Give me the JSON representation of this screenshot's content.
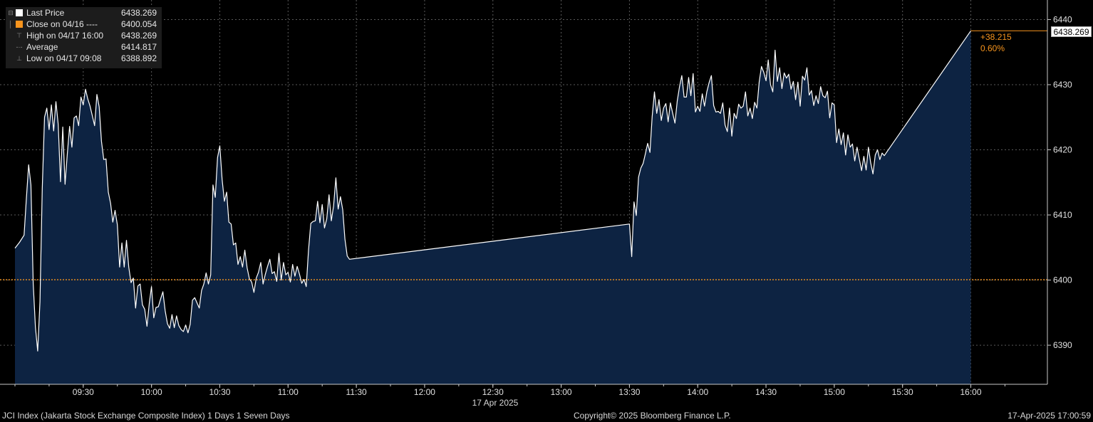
{
  "chart_data": {
    "type": "area",
    "title": "JCI Index (Jakarta Stock Exchange Composite Index) 1 Days 1 Seven Days",
    "date_label": "17 Apr 2025",
    "x_ticks": [
      "09:30",
      "10:00",
      "10:30",
      "11:00",
      "11:30",
      "12:00",
      "12:30",
      "13:00",
      "13:30",
      "14:00",
      "14:30",
      "15:00",
      "15:30",
      "16:00"
    ],
    "y_ticks": [
      "6390",
      "6400",
      "6410",
      "6420",
      "6430",
      "6440"
    ],
    "ylim": [
      6384,
      6443
    ],
    "reference_close": 6400.054,
    "last_price_label": "6438.269",
    "change": "+38.215",
    "change_pct": "0.60%",
    "series": [
      {
        "name": "Last Price",
        "color": "#ffffff",
        "fill": "#0d2342",
        "points": [
          [
            "09:00",
            6404.9
          ],
          [
            "09:02",
            6405.8
          ],
          [
            "09:04",
            6406.9
          ],
          [
            "09:05",
            6412.5
          ],
          [
            "09:06",
            6417.7
          ],
          [
            "09:07",
            6414.6
          ],
          [
            "09:08",
            6399.5
          ],
          [
            "09:09",
            6392.8
          ],
          [
            "09:10",
            6389.1
          ],
          [
            "09:11",
            6396.7
          ],
          [
            "09:12",
            6414.0
          ],
          [
            "09:13",
            6425.0
          ],
          [
            "09:14",
            6426.4
          ],
          [
            "09:15",
            6423.1
          ],
          [
            "09:16",
            6426.9
          ],
          [
            "09:17",
            6422.9
          ],
          [
            "09:18",
            6427.4
          ],
          [
            "09:19",
            6423.9
          ],
          [
            "09:20",
            6415.1
          ],
          [
            "09:21",
            6423.5
          ],
          [
            "09:22",
            6414.7
          ],
          [
            "09:23",
            6419.4
          ],
          [
            "09:24",
            6423.6
          ],
          [
            "09:25",
            6420.4
          ],
          [
            "09:26",
            6424.9
          ],
          [
            "09:27",
            6425.2
          ],
          [
            "09:28",
            6423.7
          ],
          [
            "09:29",
            6428.1
          ],
          [
            "09:30",
            6426.9
          ],
          [
            "09:31",
            6429.3
          ],
          [
            "09:32",
            6427.8
          ],
          [
            "09:33",
            6426.7
          ],
          [
            "09:34",
            6425.2
          ],
          [
            "09:35",
            6423.7
          ],
          [
            "09:36",
            6428.5
          ],
          [
            "09:37",
            6426.6
          ],
          [
            "09:38",
            6421.3
          ],
          [
            "09:39",
            6418.5
          ],
          [
            "09:40",
            6418.6
          ],
          [
            "09:41",
            6413.5
          ],
          [
            "09:42",
            6411.8
          ],
          [
            "09:43",
            6408.9
          ],
          [
            "09:44",
            6410.7
          ],
          [
            "09:45",
            6408.5
          ],
          [
            "09:46",
            6402.0
          ],
          [
            "09:47",
            6405.7
          ],
          [
            "09:48",
            6402.0
          ],
          [
            "09:49",
            6406.1
          ],
          [
            "09:50",
            6402.0
          ],
          [
            "09:51",
            6399.6
          ],
          [
            "09:52",
            6400.3
          ],
          [
            "09:53",
            6395.7
          ],
          [
            "09:54",
            6399.1
          ],
          [
            "09:55",
            6399.4
          ],
          [
            "09:56",
            6396.2
          ],
          [
            "09:57",
            6395.5
          ],
          [
            "09:58",
            6392.9
          ],
          [
            "09:59",
            6396.4
          ],
          [
            "10:00",
            6399.0
          ],
          [
            "10:01",
            6394.2
          ],
          [
            "10:02",
            6395.8
          ],
          [
            "10:03",
            6395.9
          ],
          [
            "10:04",
            6397.1
          ],
          [
            "10:05",
            6398.2
          ],
          [
            "10:06",
            6395.3
          ],
          [
            "10:07",
            6393.3
          ],
          [
            "10:08",
            6392.6
          ],
          [
            "10:09",
            6394.7
          ],
          [
            "10:10",
            6392.7
          ],
          [
            "10:11",
            6394.5
          ],
          [
            "10:12",
            6393.0
          ],
          [
            "10:13",
            6392.4
          ],
          [
            "10:14",
            6392.1
          ],
          [
            "10:15",
            6393.1
          ],
          [
            "10:16",
            6391.9
          ],
          [
            "10:17",
            6393.2
          ],
          [
            "10:18",
            6396.9
          ],
          [
            "10:19",
            6397.3
          ],
          [
            "10:20",
            6396.5
          ],
          [
            "10:21",
            6395.7
          ],
          [
            "10:22",
            6398.4
          ],
          [
            "10:23",
            6399.4
          ],
          [
            "10:24",
            6401.1
          ],
          [
            "10:25",
            6399.4
          ],
          [
            "10:26",
            6400.8
          ],
          [
            "10:27",
            6414.6
          ],
          [
            "10:28",
            6412.7
          ],
          [
            "10:29",
            6418.8
          ],
          [
            "10:30",
            6420.6
          ],
          [
            "10:31",
            6415.5
          ],
          [
            "10:32",
            6412.1
          ],
          [
            "10:33",
            6413.5
          ],
          [
            "10:34",
            6408.9
          ],
          [
            "10:35",
            6408.6
          ],
          [
            "10:36",
            6405.4
          ],
          [
            "10:37",
            6405.7
          ],
          [
            "10:38",
            6402.4
          ],
          [
            "10:39",
            6403.6
          ],
          [
            "10:40",
            6402.0
          ],
          [
            "10:41",
            6404.6
          ],
          [
            "10:42",
            6401.9
          ],
          [
            "10:43",
            6400.2
          ],
          [
            "10:44",
            6399.7
          ],
          [
            "10:45",
            6398.1
          ],
          [
            "10:46",
            6400.3
          ],
          [
            "10:47",
            6401.2
          ],
          [
            "10:48",
            6402.7
          ],
          [
            "10:49",
            6399.4
          ],
          [
            "10:50",
            6400.9
          ],
          [
            "10:51",
            6402.1
          ],
          [
            "10:52",
            6403.2
          ],
          [
            "10:53",
            6401.0
          ],
          [
            "10:54",
            6401.3
          ],
          [
            "10:55",
            6399.8
          ],
          [
            "10:56",
            6404.1
          ],
          [
            "10:57",
            6400.0
          ],
          [
            "10:58",
            6402.7
          ],
          [
            "10:59",
            6400.8
          ],
          [
            "11:00",
            6401.2
          ],
          [
            "11:01",
            6399.7
          ],
          [
            "11:02",
            6402.4
          ],
          [
            "11:03",
            6400.6
          ],
          [
            "11:04",
            6402.1
          ],
          [
            "11:05",
            6400.9
          ],
          [
            "11:06",
            6399.5
          ],
          [
            "11:07",
            6400.1
          ],
          [
            "11:08",
            6399.0
          ],
          [
            "11:09",
            6404.6
          ],
          [
            "11:10",
            6408.7
          ],
          [
            "11:11",
            6409.0
          ],
          [
            "11:12",
            6409.1
          ],
          [
            "11:13",
            6412.1
          ],
          [
            "11:14",
            6408.8
          ],
          [
            "11:15",
            6411.6
          ],
          [
            "11:16",
            6408.0
          ],
          [
            "11:17",
            6409.4
          ],
          [
            "11:18",
            6413.1
          ],
          [
            "11:19",
            6409.1
          ],
          [
            "11:20",
            6411.4
          ],
          [
            "11:21",
            6415.7
          ],
          [
            "11:22",
            6410.9
          ],
          [
            "11:23",
            6412.8
          ],
          [
            "11:24",
            6410.8
          ],
          [
            "11:25",
            6406.3
          ],
          [
            "11:26",
            6403.7
          ],
          [
            "11:27",
            6403.2
          ],
          [
            "13:30",
            6408.6
          ],
          [
            "13:31",
            6403.6
          ],
          [
            "13:32",
            6412.0
          ],
          [
            "13:33",
            6409.9
          ],
          [
            "13:34",
            6415.8
          ],
          [
            "13:35",
            6417.2
          ],
          [
            "13:36",
            6417.9
          ],
          [
            "13:37",
            6419.4
          ],
          [
            "13:38",
            6421.0
          ],
          [
            "13:39",
            6419.6
          ],
          [
            "13:40",
            6425.1
          ],
          [
            "13:41",
            6428.9
          ],
          [
            "13:42",
            6425.6
          ],
          [
            "13:43",
            6427.7
          ],
          [
            "13:44",
            6424.5
          ],
          [
            "13:45",
            6426.4
          ],
          [
            "13:46",
            6427.1
          ],
          [
            "13:47",
            6424.3
          ],
          [
            "13:48",
            6427.2
          ],
          [
            "13:49",
            6425.6
          ],
          [
            "13:50",
            6424.1
          ],
          [
            "13:51",
            6427.5
          ],
          [
            "13:52",
            6429.7
          ],
          [
            "13:53",
            6431.4
          ],
          [
            "13:54",
            6428.1
          ],
          [
            "13:55",
            6428.1
          ],
          [
            "13:56",
            6431.1
          ],
          [
            "13:57",
            6428.3
          ],
          [
            "13:58",
            6431.7
          ],
          [
            "13:59",
            6425.8
          ],
          [
            "14:00",
            6426.7
          ],
          [
            "14:01",
            6425.9
          ],
          [
            "14:02",
            6428.6
          ],
          [
            "14:03",
            6426.7
          ],
          [
            "14:04",
            6428.9
          ],
          [
            "14:05",
            6430.3
          ],
          [
            "14:06",
            6431.4
          ],
          [
            "14:07",
            6426.8
          ],
          [
            "14:08",
            6425.8
          ],
          [
            "14:09",
            6425.9
          ],
          [
            "14:10",
            6425.6
          ],
          [
            "14:11",
            6427.2
          ],
          [
            "14:12",
            6423.8
          ],
          [
            "14:13",
            6422.8
          ],
          [
            "14:14",
            6426.4
          ],
          [
            "14:15",
            6422.1
          ],
          [
            "14:16",
            6425.6
          ],
          [
            "14:17",
            6424.8
          ],
          [
            "14:18",
            6427.0
          ],
          [
            "14:19",
            6426.4
          ],
          [
            "14:20",
            6426.7
          ],
          [
            "14:21",
            6428.9
          ],
          [
            "14:22",
            6425.2
          ],
          [
            "14:23",
            6426.4
          ],
          [
            "14:24",
            6424.8
          ],
          [
            "14:25",
            6427.3
          ],
          [
            "14:26",
            6426.4
          ],
          [
            "14:27",
            6430.4
          ],
          [
            "14:28",
            6432.8
          ],
          [
            "14:29",
            6431.9
          ],
          [
            "14:30",
            6430.6
          ],
          [
            "14:31",
            6433.8
          ],
          [
            "14:32",
            6430.0
          ],
          [
            "14:33",
            6428.9
          ],
          [
            "14:34",
            6435.3
          ],
          [
            "14:35",
            6430.5
          ],
          [
            "14:36",
            6432.6
          ],
          [
            "14:37",
            6429.4
          ],
          [
            "14:38",
            6431.8
          ],
          [
            "14:39",
            6431.0
          ],
          [
            "14:40",
            6431.6
          ],
          [
            "14:41",
            6429.3
          ],
          [
            "14:42",
            6430.5
          ],
          [
            "14:43",
            6427.7
          ],
          [
            "14:44",
            6430.4
          ],
          [
            "14:45",
            6426.7
          ],
          [
            "14:46",
            6431.3
          ],
          [
            "14:47",
            6430.7
          ],
          [
            "14:48",
            6432.6
          ],
          [
            "14:49",
            6428.4
          ],
          [
            "14:50",
            6429.1
          ],
          [
            "14:51",
            6426.8
          ],
          [
            "14:52",
            6428.3
          ],
          [
            "14:53",
            6427.1
          ],
          [
            "14:54",
            6429.7
          ],
          [
            "14:55",
            6428.3
          ],
          [
            "14:56",
            6428.0
          ],
          [
            "14:57",
            6429.0
          ],
          [
            "14:58",
            6424.9
          ],
          [
            "14:59",
            6427.2
          ],
          [
            "15:00",
            6426.9
          ],
          [
            "15:01",
            6421.1
          ],
          [
            "15:02",
            6423.2
          ],
          [
            "15:03",
            6420.8
          ],
          [
            "15:04",
            6422.6
          ],
          [
            "15:05",
            6419.2
          ],
          [
            "15:06",
            6422.3
          ],
          [
            "15:07",
            6420.4
          ],
          [
            "15:08",
            6420.9
          ],
          [
            "15:09",
            6418.3
          ],
          [
            "15:10",
            6420.4
          ],
          [
            "15:11",
            6418.6
          ],
          [
            "15:12",
            6416.8
          ],
          [
            "15:13",
            6419.0
          ],
          [
            "15:14",
            6416.9
          ],
          [
            "15:15",
            6420.4
          ],
          [
            "15:16",
            6418.0
          ],
          [
            "15:17",
            6416.3
          ],
          [
            "15:18",
            6419.2
          ],
          [
            "15:19",
            6420.0
          ],
          [
            "15:20",
            6418.5
          ],
          [
            "15:21",
            6419.5
          ],
          [
            "15:22",
            6419.1
          ],
          [
            "16:00",
            6438.269
          ]
        ]
      }
    ],
    "legend": [
      {
        "icon": "square-white",
        "label": "Last Price",
        "value": "6438.269",
        "color": "#ffffff"
      },
      {
        "icon": "square-orange",
        "label": "Close on 04/16 ----",
        "value": "6400.054",
        "color": "#f7941d"
      },
      {
        "icon": "high-marker",
        "label": "High on 04/17 16:00",
        "value": "6438.269"
      },
      {
        "icon": "average-marker",
        "label": "Average",
        "value": "6414.817"
      },
      {
        "icon": "low-marker",
        "label": "Low on 04/17 09:08",
        "value": "6388.892"
      }
    ],
    "grid": true,
    "legend_position": "top-left",
    "colors": {
      "line": "#ffffff",
      "fill": "#0d2342",
      "reference": "#f7941d",
      "grid": "#5a5a5a",
      "axis": "#c8c8c8"
    }
  },
  "footer": {
    "left": "JCI Index (Jakarta Stock Exchange Composite Index) 1 Days 1 Seven Days",
    "center": "Copyright© 2025 Bloomberg Finance L.P.",
    "right": "17-Apr-2025 17:00:59"
  }
}
